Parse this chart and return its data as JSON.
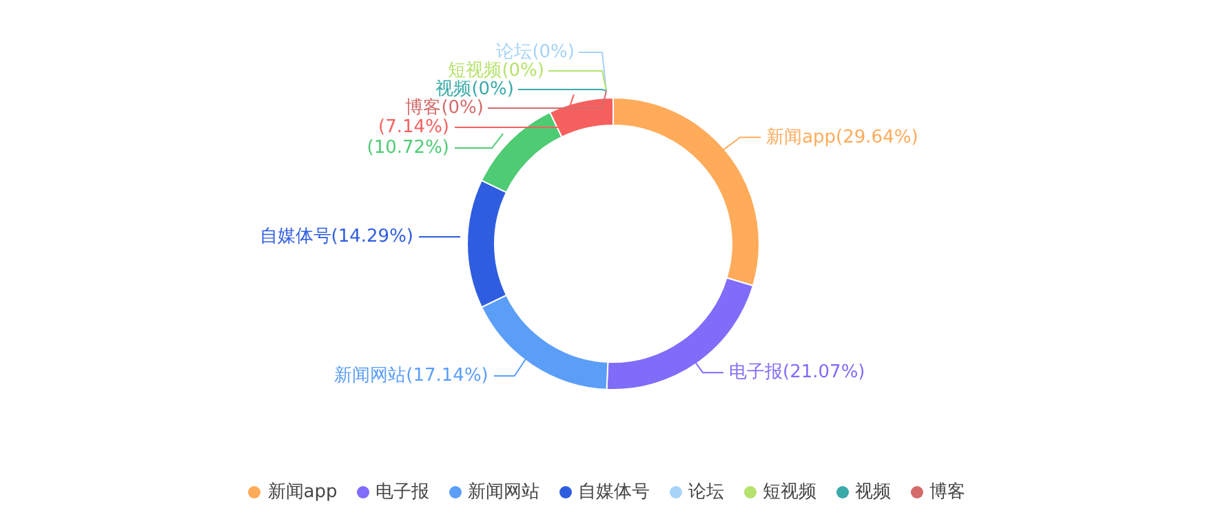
{
  "chart_data": {
    "type": "donut",
    "categories": [
      "新闻app",
      "电子报",
      "新闻网站",
      "自媒体号",
      null,
      null,
      "论坛",
      "短视频",
      "视频",
      "博客"
    ],
    "values": [
      29.64,
      21.07,
      17.14,
      14.29,
      10.72,
      7.14,
      0,
      0,
      0,
      0
    ],
    "value_labels": [
      "(29.64%)",
      "(21.07%)",
      "(17.14%)",
      "(14.29%)",
      "(10.72%)",
      "(7.14%)",
      "(0%)",
      "(0%)",
      "(0%)",
      "(0%)"
    ],
    "colors": [
      "#ffab5a",
      "#7f6cf8",
      "#5b9ef8",
      "#2f5de0",
      "#4ecb73",
      "#f5605f",
      "#a6d3f8",
      "#b5e26c",
      "#3aa9a9",
      "#d46a6a"
    ],
    "legend": "bottom"
  }
}
